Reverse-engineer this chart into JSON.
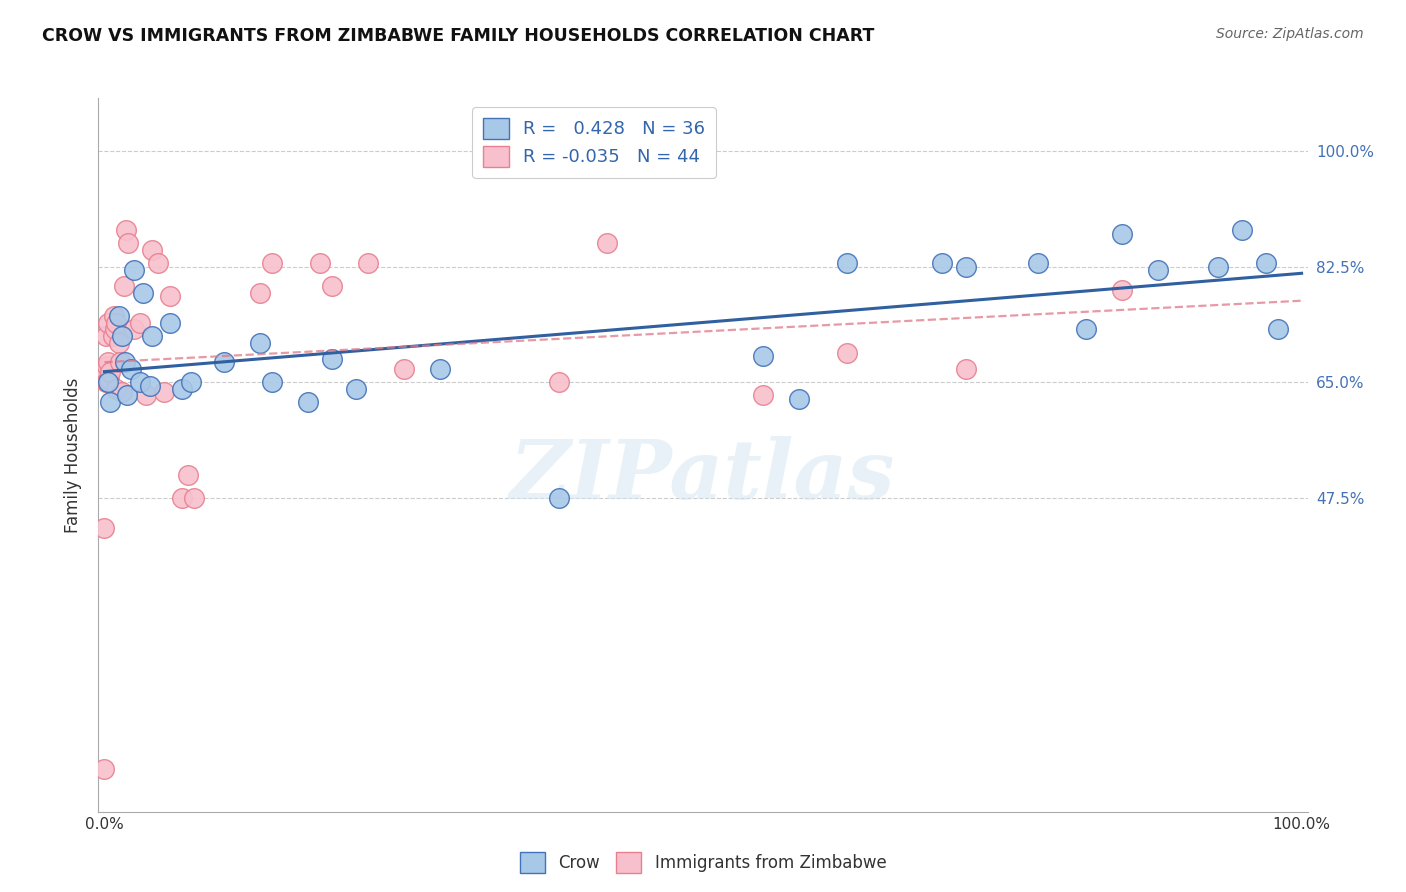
{
  "title": "CROW VS IMMIGRANTS FROM ZIMBABWE FAMILY HOUSEHOLDS CORRELATION CHART",
  "source": "Source: ZipAtlas.com",
  "ylabel": "Family Households",
  "crow_R": 0.428,
  "crow_N": 36,
  "zimb_R": -0.035,
  "zimb_N": 44,
  "crow_color": "#a8c8e8",
  "crow_edge_color": "#4472b8",
  "crow_line_color": "#3060a0",
  "zimb_color": "#f8c0cc",
  "zimb_edge_color": "#e88090",
  "zimb_line_color": "#e07888",
  "watermark": "ZIPatlas",
  "legend_label_crow": "Crow",
  "legend_label_zimb": "Immigrants from Zimbabwe",
  "crow_x": [
    0.003,
    0.005,
    0.012,
    0.015,
    0.017,
    0.019,
    0.022,
    0.025,
    0.03,
    0.032,
    0.038,
    0.04,
    0.055,
    0.065,
    0.072,
    0.1,
    0.13,
    0.14,
    0.17,
    0.19,
    0.21,
    0.28,
    0.38,
    0.55,
    0.58,
    0.62,
    0.7,
    0.72,
    0.78,
    0.82,
    0.85,
    0.88,
    0.93,
    0.95,
    0.97,
    0.98
  ],
  "crow_y": [
    0.65,
    0.62,
    0.75,
    0.72,
    0.68,
    0.63,
    0.67,
    0.82,
    0.65,
    0.785,
    0.645,
    0.72,
    0.74,
    0.64,
    0.65,
    0.68,
    0.71,
    0.65,
    0.62,
    0.685,
    0.64,
    0.67,
    0.475,
    0.69,
    0.625,
    0.83,
    0.83,
    0.825,
    0.83,
    0.73,
    0.875,
    0.82,
    0.825,
    0.88,
    0.83,
    0.73
  ],
  "zimb_x": [
    0.0,
    0.0,
    0.0,
    0.001,
    0.001,
    0.002,
    0.002,
    0.003,
    0.003,
    0.004,
    0.005,
    0.007,
    0.008,
    0.009,
    0.01,
    0.01,
    0.012,
    0.013,
    0.015,
    0.016,
    0.018,
    0.02,
    0.025,
    0.03,
    0.035,
    0.04,
    0.045,
    0.05,
    0.055,
    0.065,
    0.07,
    0.075,
    0.13,
    0.14,
    0.18,
    0.19,
    0.22,
    0.25,
    0.38,
    0.42,
    0.55,
    0.62,
    0.72,
    0.85
  ],
  "zimb_y": [
    0.43,
    0.065,
    0.67,
    0.65,
    0.72,
    0.65,
    0.675,
    0.68,
    0.74,
    0.655,
    0.665,
    0.72,
    0.75,
    0.73,
    0.64,
    0.74,
    0.71,
    0.68,
    0.635,
    0.795,
    0.88,
    0.86,
    0.73,
    0.74,
    0.63,
    0.85,
    0.83,
    0.635,
    0.78,
    0.475,
    0.51,
    0.475,
    0.785,
    0.83,
    0.83,
    0.795,
    0.83,
    0.67,
    0.65,
    0.86,
    0.63,
    0.695,
    0.67,
    0.79
  ],
  "y_ticks": [
    0.475,
    0.65,
    0.825,
    1.0
  ],
  "y_tick_labels": [
    "47.5%",
    "65.0%",
    "82.5%",
    "100.0%"
  ],
  "xlim": [
    -0.005,
    1.005
  ],
  "ylim": [
    0.0,
    1.08
  ],
  "background_color": "#ffffff",
  "grid_color": "#cccccc"
}
